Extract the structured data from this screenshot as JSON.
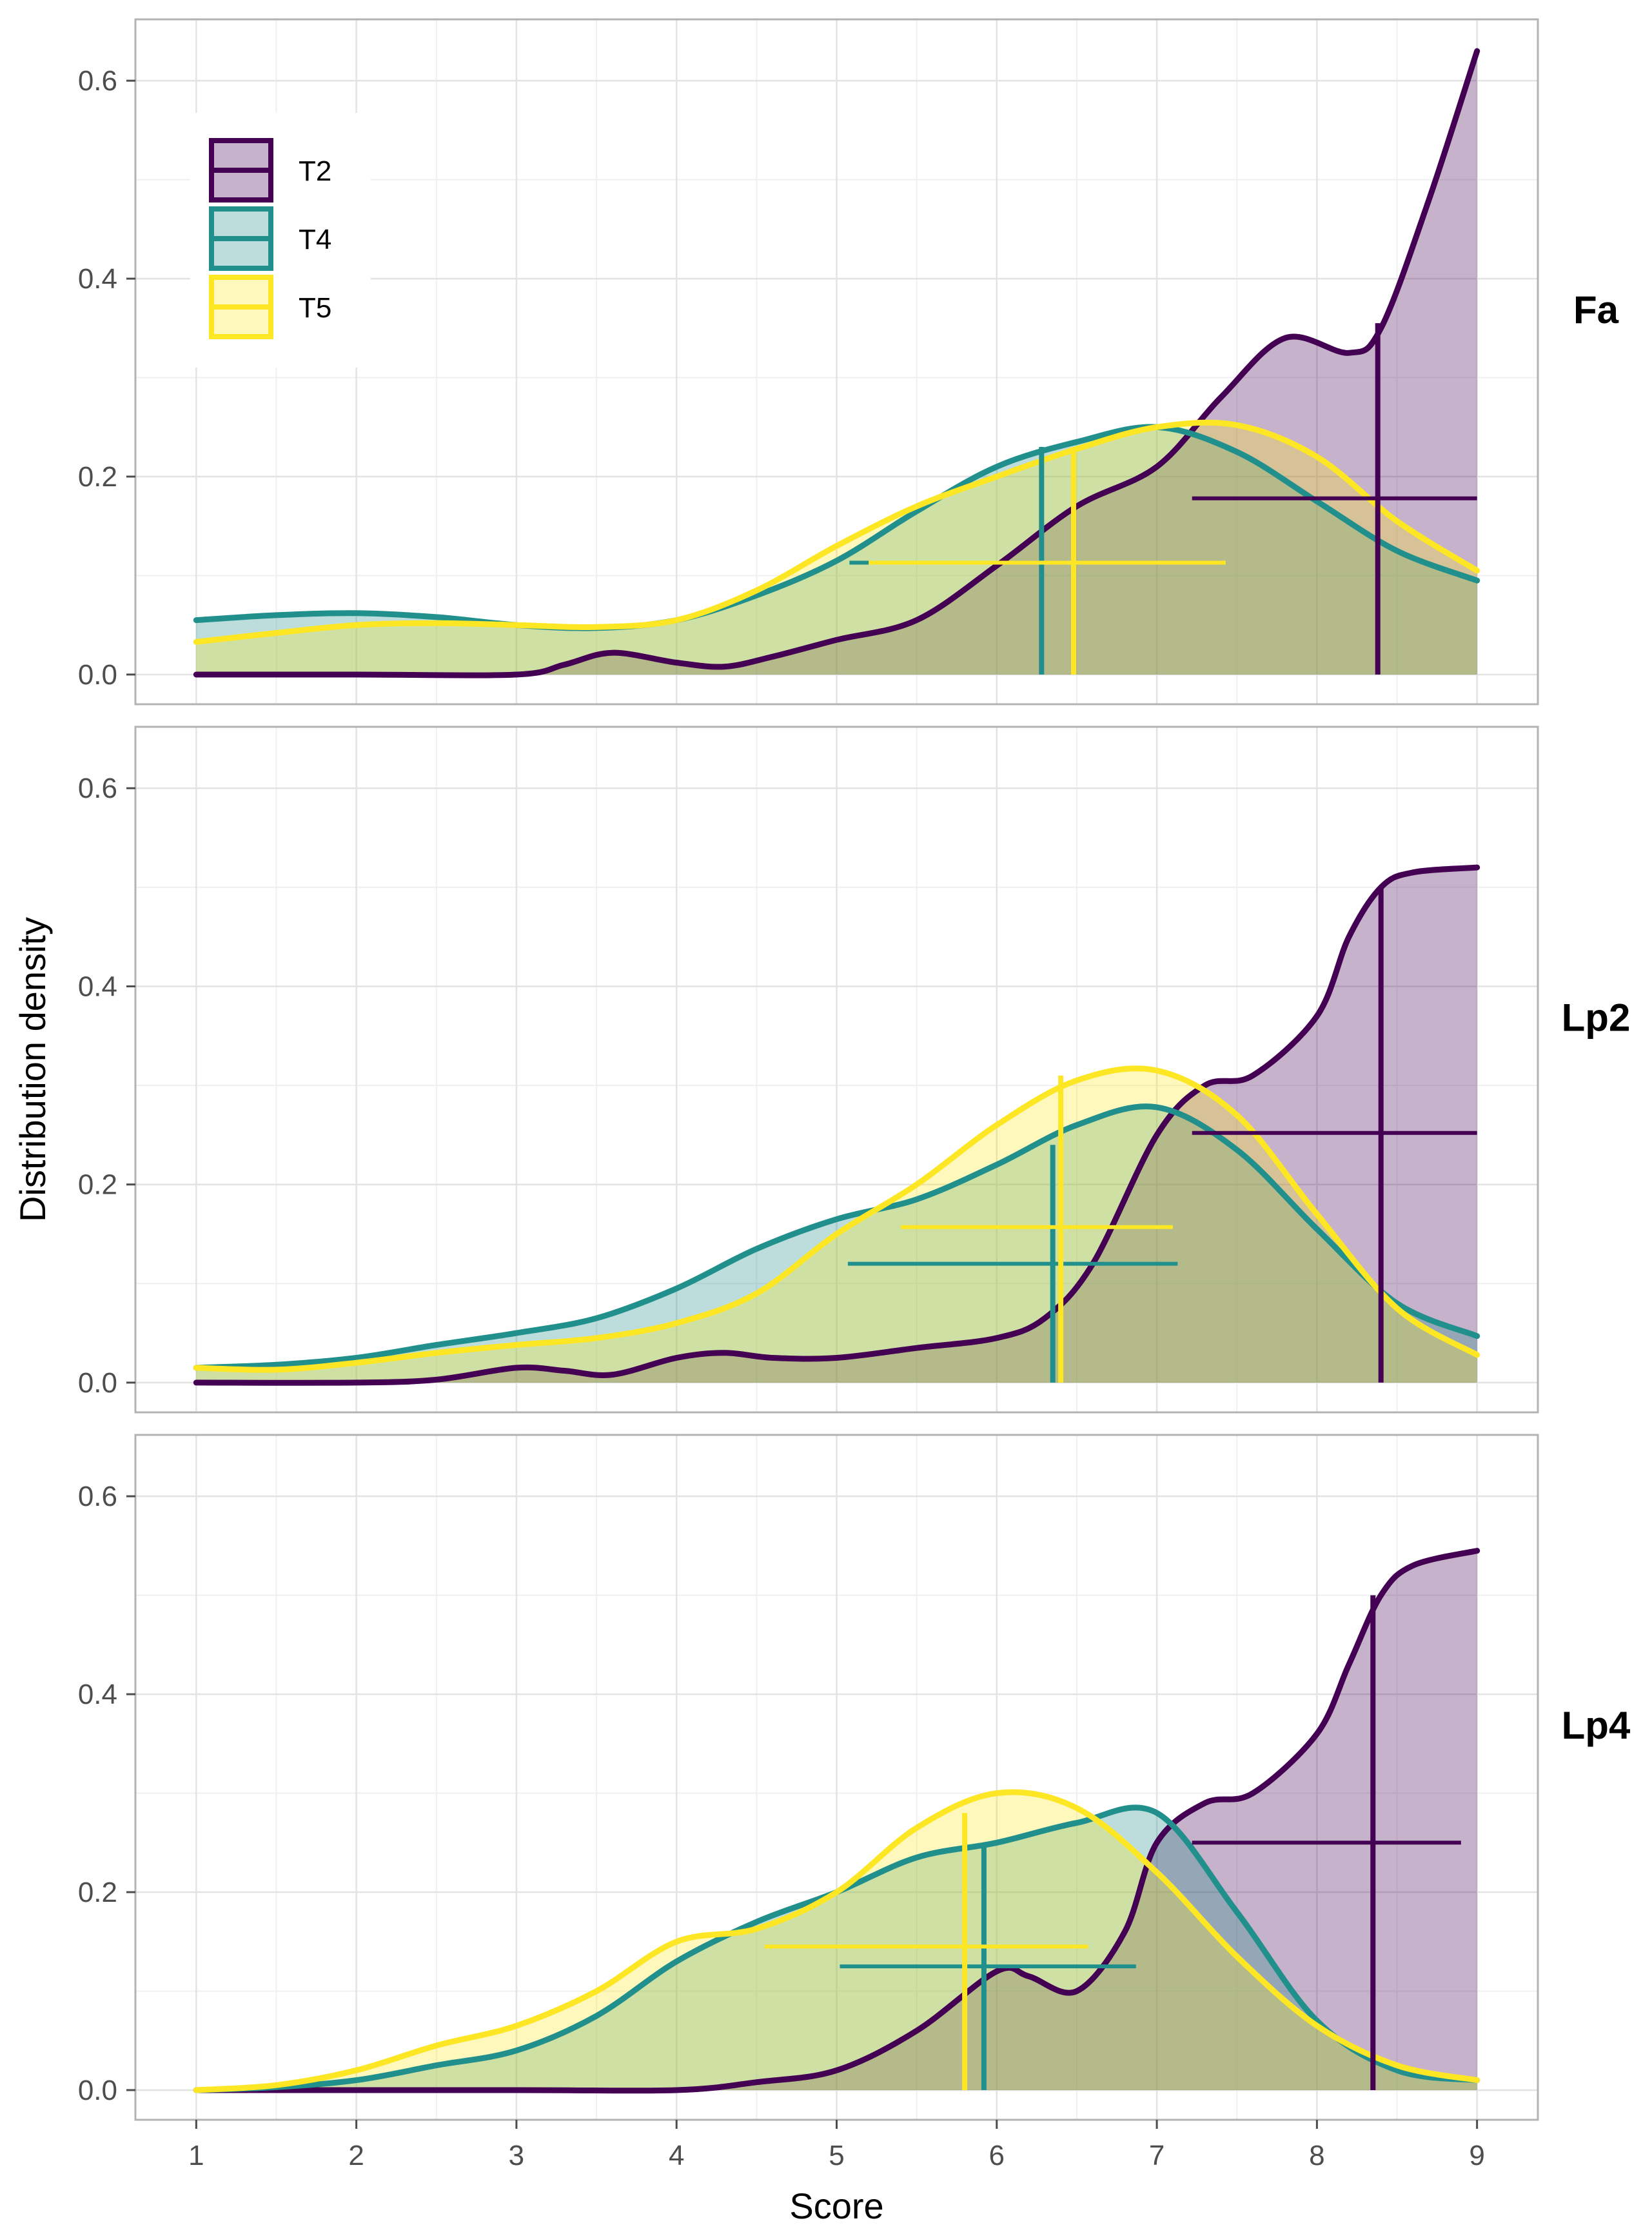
{
  "chart_data": {
    "type": "area",
    "xlabel": "Score",
    "ylabel": "Distribution density",
    "xlim": [
      1,
      9
    ],
    "ylim": [
      0,
      0.65
    ],
    "x_ticks": [
      1,
      2,
      3,
      4,
      5,
      6,
      7,
      8,
      9
    ],
    "y_ticks": [
      0.0,
      0.2,
      0.4,
      0.6
    ],
    "y_tick_labels": [
      "0.0",
      "0.2",
      "0.4",
      "0.6"
    ],
    "grid": true,
    "legend": {
      "position": "top-left",
      "entries": [
        {
          "name": "T2",
          "color": "#440154"
        },
        {
          "name": "T4",
          "color": "#21908C"
        },
        {
          "name": "T5",
          "color": "#FDE725"
        }
      ]
    },
    "panels": [
      {
        "label": "Fa",
        "series": [
          {
            "name": "T2",
            "x": [
              1,
              2,
              3,
              3.3,
              3.6,
              4,
              4.3,
              4.6,
              5,
              5.5,
              6,
              6.5,
              7,
              7.4,
              7.8,
              8.2,
              8.4,
              8.7,
              9
            ],
            "y": [
              0,
              0,
              0,
              0.01,
              0.022,
              0.012,
              0.008,
              0.018,
              0.035,
              0.055,
              0.11,
              0.17,
              0.21,
              0.28,
              0.34,
              0.325,
              0.35,
              0.48,
              0.63
            ],
            "mean": 8.38,
            "mean_peak": 0.355,
            "err_low": 7.22,
            "err_high": 9.0,
            "err_y": 0.178
          },
          {
            "name": "T4",
            "x": [
              1,
              1.5,
              2,
              2.5,
              3,
              3.5,
              4,
              4.5,
              5,
              5.5,
              6,
              6.5,
              7,
              7.5,
              8,
              8.5,
              9
            ],
            "y": [
              0.055,
              0.06,
              0.062,
              0.058,
              0.05,
              0.047,
              0.055,
              0.08,
              0.115,
              0.165,
              0.21,
              0.235,
              0.25,
              0.225,
              0.175,
              0.125,
              0.095
            ],
            "mean": 6.28,
            "mean_peak": 0.23,
            "err_low": 5.08,
            "err_high": 7.33,
            "err_y": 0.113
          },
          {
            "name": "T5",
            "x": [
              1,
              1.5,
              2,
              2.5,
              3,
              3.5,
              4,
              4.5,
              5,
              5.5,
              6,
              6.5,
              7,
              7.5,
              8,
              8.5,
              9
            ],
            "y": [
              0.033,
              0.042,
              0.05,
              0.052,
              0.05,
              0.048,
              0.055,
              0.085,
              0.13,
              0.17,
              0.2,
              0.228,
              0.25,
              0.252,
              0.22,
              0.155,
              0.105
            ],
            "mean": 6.48,
            "mean_peak": 0.23,
            "err_low": 5.2,
            "err_high": 7.43,
            "err_y": 0.113
          }
        ]
      },
      {
        "label": "Lp2",
        "series": [
          {
            "name": "T2",
            "x": [
              1,
              2,
              2.5,
              3,
              3.3,
              3.6,
              4,
              4.3,
              4.6,
              5,
              5.5,
              6,
              6.3,
              6.6,
              7,
              7.3,
              7.6,
              8,
              8.2,
              8.4,
              8.6,
              9
            ],
            "y": [
              0,
              0,
              0.003,
              0.015,
              0.012,
              0.008,
              0.025,
              0.03,
              0.025,
              0.025,
              0.035,
              0.045,
              0.065,
              0.12,
              0.25,
              0.3,
              0.31,
              0.37,
              0.45,
              0.5,
              0.515,
              0.52
            ],
            "mean": 8.4,
            "mean_peak": 0.5,
            "err_low": 7.22,
            "err_high": 9.0,
            "err_y": 0.252
          },
          {
            "name": "T4",
            "x": [
              1,
              1.5,
              2,
              2.5,
              3,
              3.5,
              4,
              4.5,
              5,
              5.5,
              6,
              6.5,
              7,
              7.5,
              8,
              8.5,
              9
            ],
            "y": [
              0.015,
              0.018,
              0.025,
              0.038,
              0.05,
              0.065,
              0.095,
              0.135,
              0.165,
              0.185,
              0.22,
              0.26,
              0.278,
              0.235,
              0.155,
              0.08,
              0.047
            ],
            "mean": 6.35,
            "mean_peak": 0.24,
            "err_low": 5.07,
            "err_high": 7.13,
            "err_y": 0.12
          },
          {
            "name": "T5",
            "x": [
              1,
              1.5,
              2,
              2.5,
              3,
              3.5,
              4,
              4.5,
              5,
              5.5,
              6,
              6.5,
              7,
              7.5,
              8,
              8.5,
              9
            ],
            "y": [
              0.015,
              0.013,
              0.02,
              0.03,
              0.038,
              0.045,
              0.06,
              0.09,
              0.15,
              0.2,
              0.26,
              0.305,
              0.315,
              0.27,
              0.17,
              0.075,
              0.028
            ],
            "mean": 6.4,
            "mean_peak": 0.31,
            "err_low": 5.4,
            "err_high": 7.1,
            "err_y": 0.157
          }
        ]
      },
      {
        "label": "Lp4",
        "series": [
          {
            "name": "T2",
            "x": [
              1,
              3,
              4,
              4.5,
              5,
              5.5,
              6,
              6.2,
              6.5,
              6.8,
              7,
              7.3,
              7.6,
              8,
              8.2,
              8.4,
              8.6,
              9
            ],
            "y": [
              0,
              0,
              0,
              0.008,
              0.02,
              0.06,
              0.12,
              0.115,
              0.1,
              0.16,
              0.25,
              0.29,
              0.3,
              0.36,
              0.43,
              0.5,
              0.53,
              0.545
            ],
            "mean": 8.35,
            "mean_peak": 0.5,
            "err_low": 7.22,
            "err_high": 8.9,
            "err_y": 0.25
          },
          {
            "name": "T4",
            "x": [
              1,
              1.5,
              2,
              2.5,
              3,
              3.5,
              4,
              4.5,
              5,
              5.5,
              6,
              6.5,
              7,
              7.5,
              8,
              8.5,
              9
            ],
            "y": [
              0,
              0.003,
              0.01,
              0.025,
              0.04,
              0.075,
              0.13,
              0.17,
              0.2,
              0.235,
              0.25,
              0.27,
              0.28,
              0.18,
              0.07,
              0.02,
              0.01
            ],
            "mean": 5.92,
            "mean_peak": 0.245,
            "err_low": 5.02,
            "err_high": 6.87,
            "err_y": 0.125
          },
          {
            "name": "T5",
            "x": [
              1,
              1.5,
              2,
              2.5,
              3,
              3.5,
              4,
              4.5,
              5,
              5.5,
              6,
              6.5,
              7,
              7.5,
              8,
              8.5,
              9
            ],
            "y": [
              0,
              0.005,
              0.02,
              0.045,
              0.065,
              0.1,
              0.15,
              0.163,
              0.2,
              0.265,
              0.3,
              0.285,
              0.22,
              0.135,
              0.065,
              0.025,
              0.01
            ],
            "mean": 5.8,
            "mean_peak": 0.28,
            "err_low": 4.55,
            "err_high": 6.57,
            "err_y": 0.145
          }
        ]
      }
    ]
  }
}
